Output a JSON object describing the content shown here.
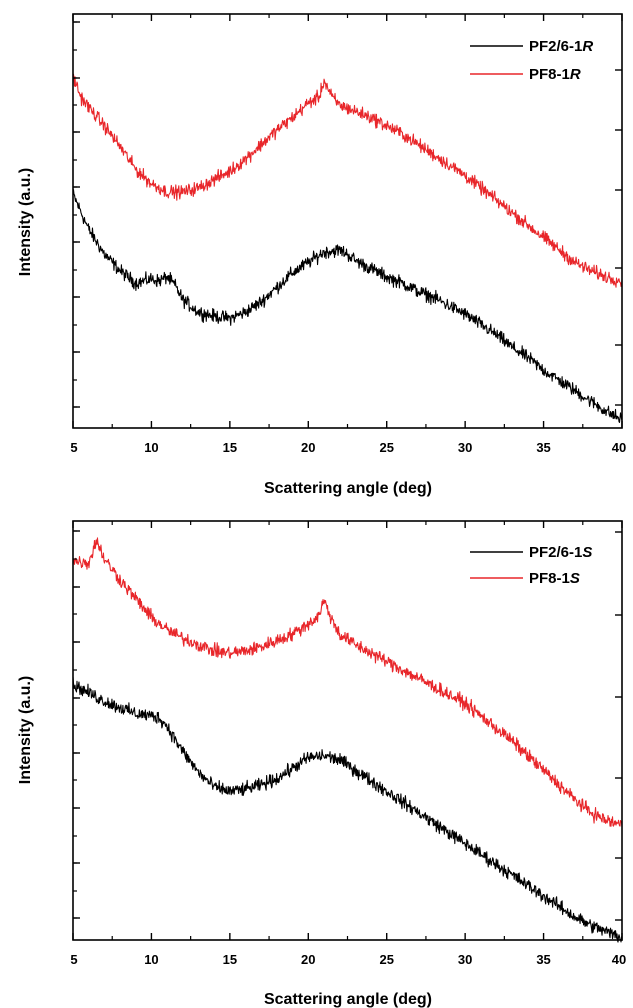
{
  "chart_data": [
    {
      "type": "line",
      "xlabel": "Scattering angle (deg)",
      "ylabel": "Intensity (a.u.)",
      "xlim": [
        5,
        40
      ],
      "ylim": [
        0,
        100
      ],
      "xticks": [
        "5",
        "10",
        "15",
        "20",
        "25",
        "30",
        "35",
        "40"
      ],
      "y_tick_labels": "none",
      "grid": false,
      "legend_position": "top-right",
      "series": [
        {
          "name": "PF2/6-1R",
          "legend_text": "PF2/6-1",
          "legend_italic": "R",
          "color": "#000000",
          "x": [
            5,
            6,
            7,
            8,
            9,
            10,
            10.5,
            11,
            11.5,
            12,
            13,
            14,
            15,
            16,
            17,
            18,
            19,
            20,
            21,
            22,
            22.5,
            23,
            24,
            25,
            26,
            27,
            28,
            29,
            30,
            31,
            32,
            33,
            34,
            35,
            36,
            37,
            38,
            39,
            40
          ],
          "values": [
            56.5,
            48,
            42,
            38,
            35,
            36,
            35.5,
            36.5,
            34.5,
            31,
            28,
            27,
            26.5,
            28,
            30.5,
            34,
            37.5,
            40,
            42.5,
            43,
            42,
            40.5,
            38.5,
            36.5,
            35,
            33,
            31.5,
            29.5,
            27.5,
            25,
            22.5,
            19.5,
            17,
            14,
            11.5,
            9,
            6.5,
            4,
            2
          ]
        },
        {
          "name": "PF8-1R",
          "legend_text": "PF8-1",
          "legend_italic": "R",
          "color": "#e8262a",
          "x": [
            5,
            5.5,
            6,
            7,
            8,
            9,
            10,
            11,
            12,
            13,
            14,
            15,
            16,
            17,
            18,
            19,
            20,
            20.7,
            21,
            21.5,
            22,
            23,
            24,
            25,
            26,
            27,
            28,
            29,
            30,
            31,
            32,
            33,
            34,
            35,
            36,
            37,
            38,
            39,
            40
          ],
          "values": [
            85,
            80,
            77.5,
            73,
            68,
            62.5,
            59,
            57,
            57,
            58,
            60,
            62,
            65,
            68.5,
            72,
            75,
            78.5,
            80,
            84,
            80,
            78,
            76.5,
            75,
            73,
            71,
            68.5,
            66,
            63.5,
            61,
            58,
            55,
            52,
            49,
            46,
            43,
            40,
            38,
            36.5,
            35.5
          ]
        }
      ]
    },
    {
      "type": "line",
      "xlabel": "Scattering angle (deg)",
      "ylabel": "Intensity (a.u.)",
      "xlim": [
        5,
        40
      ],
      "ylim": [
        0,
        100
      ],
      "xticks": [
        "5",
        "10",
        "15",
        "20",
        "25",
        "30",
        "35",
        "40"
      ],
      "y_tick_labels": "none",
      "grid": false,
      "legend_position": "top-right",
      "series": [
        {
          "name": "PF2/6-1S",
          "legend_text": "PF2/6-1",
          "legend_italic": "S",
          "color": "#000000",
          "x": [
            5,
            6,
            7,
            8,
            9,
            10,
            10.5,
            11,
            12,
            13,
            14,
            15,
            16,
            17,
            18,
            19,
            20,
            21,
            22,
            23,
            24,
            25,
            26,
            27,
            28,
            29,
            30,
            31,
            32,
            33,
            34,
            35,
            36,
            37,
            38,
            39,
            40
          ],
          "values": [
            61,
            59,
            57,
            55.5,
            54,
            53.5,
            53,
            51,
            45,
            40,
            36.5,
            35.5,
            36,
            37,
            38.5,
            41,
            43.5,
            44,
            43,
            40.5,
            38,
            35.5,
            33,
            30.5,
            28,
            25.5,
            23,
            20.5,
            18,
            15.5,
            13,
            10.5,
            8,
            5.5,
            3.5,
            2,
            0.5
          ]
        },
        {
          "name": "PF8-1S",
          "legend_text": "PF8-1",
          "legend_italic": "S",
          "color": "#e8262a",
          "x": [
            5,
            6,
            6.5,
            7,
            8,
            9,
            10,
            11,
            12,
            13,
            14,
            15,
            16,
            17,
            18,
            19,
            20,
            20.6,
            21,
            21.5,
            22,
            23,
            24,
            25,
            26,
            27,
            28,
            29,
            30,
            31,
            32,
            33,
            34,
            35,
            36,
            37,
            38,
            39,
            40
          ],
          "values": [
            90.5,
            90,
            95.5,
            91,
            86,
            81.5,
            77,
            74,
            72,
            70.5,
            69,
            68.5,
            69,
            70,
            71.5,
            73,
            75.5,
            77,
            81,
            76.5,
            73,
            70.5,
            68.5,
            66.5,
            64.5,
            62.5,
            60.5,
            58.5,
            56.5,
            53.5,
            50.5,
            47.5,
            44,
            40.5,
            37,
            33.5,
            30.5,
            28.5,
            27.5
          ]
        }
      ]
    }
  ]
}
